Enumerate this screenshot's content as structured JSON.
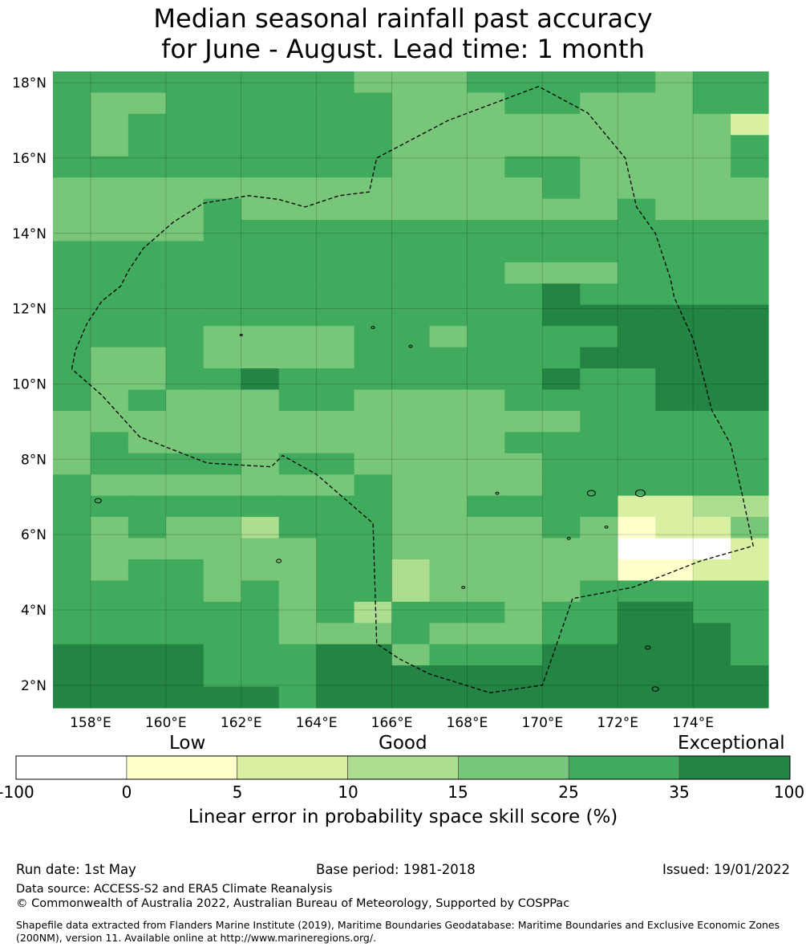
{
  "title": {
    "line1": "Median seasonal rainfall past accuracy",
    "line2": "for June - August. Lead time: 1 month"
  },
  "map": {
    "lon_range": [
      157,
      176
    ],
    "lat_range": [
      1.4,
      18.3
    ],
    "lat_ticks": [
      {
        "value": 18,
        "label": "18°N"
      },
      {
        "value": 16,
        "label": "16°N"
      },
      {
        "value": 14,
        "label": "14°N"
      },
      {
        "value": 12,
        "label": "12°N"
      },
      {
        "value": 10,
        "label": "10°N"
      },
      {
        "value": 8,
        "label": "8°N"
      },
      {
        "value": 6,
        "label": "6°N"
      },
      {
        "value": 4,
        "label": "4°N"
      },
      {
        "value": 2,
        "label": "2°N"
      }
    ],
    "lon_ticks": [
      {
        "value": 158,
        "label": "158°E"
      },
      {
        "value": 160,
        "label": "160°E"
      },
      {
        "value": 162,
        "label": "162°E"
      },
      {
        "value": 164,
        "label": "164°E"
      },
      {
        "value": 166,
        "label": "166°E"
      },
      {
        "value": 168,
        "label": "168°E"
      },
      {
        "value": 170,
        "label": "170°E"
      },
      {
        "value": 172,
        "label": "172°E"
      },
      {
        "value": 174,
        "label": "174°E"
      }
    ],
    "grid_cell_deg": 0.833,
    "category_colors": [
      "#ffffff",
      "#ffffcc",
      "#d9f0a3",
      "#addd8e",
      "#78c679",
      "#41ab5d",
      "#238443"
    ],
    "skill_grid_north_to_south": [
      "5555555544455555455",
      "5445555554445544455",
      "5455555554444444442",
      "5455555554444444445",
      "5555555554445544445",
      "4444444444444544444",
      "4444544444444445444",
      "4444555555555555555",
      "5555555555555555555",
      "5555555555554445555",
      "5555555555555655555",
      "5555555555555666666",
      "5555444455455556666",
      "5445444455555566666",
      "5445565555555655666",
      "5454445544445555666",
      "4444444444444455555",
      "4544444444445555555",
      "4555545544444555555",
      "5444444454444555555",
      "5555555554455552233",
      "5454435554444541224",
      "5444444554444440002",
      "5455444553444441122",
      "5555454553444455555",
      "5555554535554556655",
      "5555554445444556665",
      "6666555664555666665",
      "6666555666666666666",
      "6666665666666666666"
    ],
    "eez_boundary": [
      [
        157.5,
        10.4
      ],
      [
        157.6,
        10.9
      ],
      [
        157.9,
        11.6
      ],
      [
        158.3,
        12.2
      ],
      [
        158.8,
        12.6
      ],
      [
        159.0,
        13.0
      ],
      [
        159.4,
        13.6
      ],
      [
        160.2,
        14.3
      ],
      [
        161.0,
        14.8
      ],
      [
        162.2,
        15.0
      ],
      [
        163.0,
        14.9
      ],
      [
        163.7,
        14.7
      ],
      [
        164.6,
        15.0
      ],
      [
        165.4,
        15.1
      ],
      [
        165.6,
        16.0
      ],
      [
        167.5,
        17.0
      ],
      [
        169.9,
        17.9
      ],
      [
        171.2,
        17.2
      ],
      [
        172.2,
        16.0
      ],
      [
        172.5,
        14.7
      ],
      [
        173.0,
        14.0
      ],
      [
        173.4,
        12.8
      ],
      [
        173.5,
        12.3
      ],
      [
        174.0,
        11.2
      ],
      [
        174.3,
        10.1
      ],
      [
        174.5,
        9.3
      ],
      [
        175.0,
        8.4
      ],
      [
        175.3,
        7.1
      ],
      [
        175.6,
        5.7
      ],
      [
        174.2,
        5.3
      ],
      [
        172.4,
        4.6
      ],
      [
        170.8,
        4.3
      ],
      [
        170.0,
        2.0
      ],
      [
        168.6,
        1.8
      ],
      [
        167.0,
        2.3
      ],
      [
        166.2,
        2.7
      ],
      [
        165.6,
        3.1
      ],
      [
        165.5,
        6.3
      ],
      [
        164.0,
        7.6
      ],
      [
        163.1,
        8.1
      ],
      [
        162.8,
        7.8
      ],
      [
        161.1,
        7.9
      ],
      [
        159.3,
        8.6
      ],
      [
        158.3,
        9.7
      ],
      [
        157.5,
        10.4
      ]
    ]
  },
  "colorbar": {
    "category_labels": {
      "low": "Low",
      "good": "Good",
      "exceptional": "Exceptional"
    },
    "tick_labels": [
      "-100",
      "0",
      "5",
      "10",
      "15",
      "25",
      "35",
      "100"
    ],
    "title": "Linear error in probability space skill score (%)"
  },
  "footer": {
    "run_date": "Run date: 1st May",
    "base_period": "Base period: 1981-2018",
    "issued": "Issued: 19/01/2022",
    "data_source": "Data source: ACCESS-S2 and ERA5 Climate Reanalysis",
    "copyright": "© Commonwealth of Australia 2022, Australian Bureau of Meteorology, Supported by COSPPac",
    "shapefile_note": "Shapefile data extracted from Flanders Marine Institute (2019), Maritime Boundaries Geodatabase: Maritime Boundaries and Exclusive Economic Zones (200NM), version 11. Available online at http://www.marineregions.org/."
  }
}
